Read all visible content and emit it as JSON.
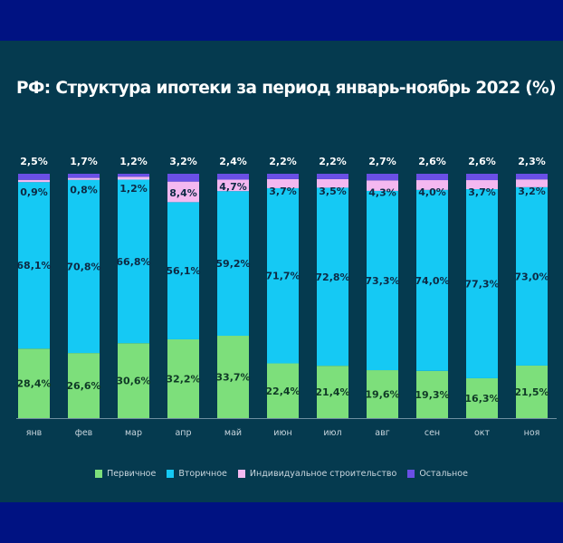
{
  "chart_data": {
    "type": "bar",
    "stacked": true,
    "title": "РФ: Структура ипотеки за период январь-ноябрь 2022 (%)",
    "xlabel": "",
    "ylabel": "",
    "ylim": [
      0,
      100
    ],
    "grid": false,
    "legend_position": "bottom",
    "categories": [
      "янв",
      "фев",
      "мар",
      "апр",
      "май",
      "июн",
      "июл",
      "авг",
      "сен",
      "окт",
      "ноя"
    ],
    "series": [
      {
        "name": "Первичное",
        "color": "#7ddf7b",
        "values": [
          28.4,
          26.6,
          30.6,
          32.2,
          33.7,
          22.4,
          21.4,
          19.6,
          19.3,
          16.3,
          21.5
        ],
        "labels": [
          "28,4%",
          "26,6%",
          "30,6%",
          "32,2%",
          "33,7%",
          "22,4%",
          "21,4%",
          "19,6%",
          "19,3%",
          "16,3%",
          "21,5%"
        ]
      },
      {
        "name": "Вторичное",
        "color": "#15c9f4",
        "values": [
          68.1,
          70.8,
          66.8,
          56.1,
          59.2,
          71.7,
          72.8,
          73.3,
          74.0,
          77.3,
          73.0
        ],
        "labels": [
          "68,1%",
          "70,8%",
          "66,8%",
          "56,1%",
          "59,2%",
          "71,7%",
          "72,8%",
          "73,3%",
          "74,0%",
          "77,3%",
          "73,0%"
        ]
      },
      {
        "name": "Индивидуальное строительство",
        "color": "#f4b8f0",
        "values": [
          0.9,
          0.8,
          1.2,
          8.4,
          4.7,
          3.7,
          3.5,
          4.3,
          4.0,
          3.7,
          3.2
        ],
        "labels": [
          "0,9%",
          "0,8%",
          "1,2%",
          "8,4%",
          "4,7%",
          "3,7%",
          "3,5%",
          "4,3%",
          "4,0%",
          "3,7%",
          "3,2%"
        ]
      },
      {
        "name": "Остальное",
        "color": "#6a4fe6",
        "values": [
          2.5,
          1.7,
          1.2,
          3.2,
          2.4,
          2.2,
          2.2,
          2.7,
          2.6,
          2.6,
          2.3
        ],
        "labels": [
          "2,5%",
          "1,7%",
          "1,2%",
          "3,2%",
          "2,4%",
          "2,2%",
          "2,2%",
          "2,7%",
          "2,6%",
          "2,6%",
          "2,3%"
        ]
      }
    ]
  },
  "colors": {
    "frame_blue": "#001282",
    "panel_bg": "#053a4f",
    "axis_line": "#6f8fa0"
  }
}
